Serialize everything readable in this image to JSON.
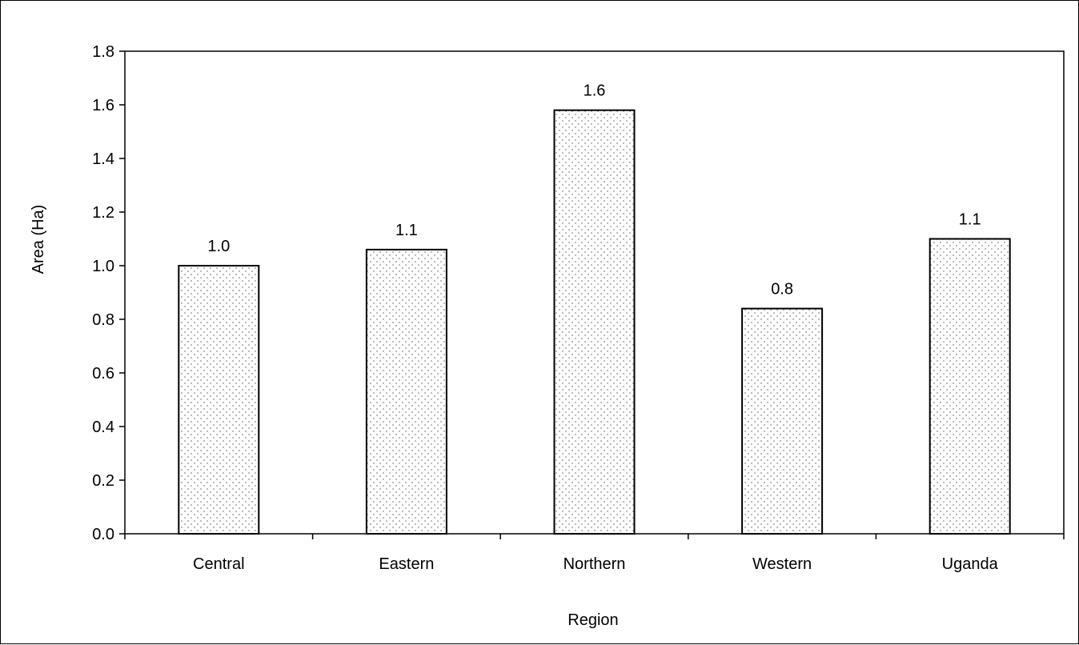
{
  "chart_data": {
    "type": "bar",
    "title": "",
    "xlabel": "Region",
    "ylabel": "Area (Ha)",
    "categories": [
      "Central",
      "Eastern",
      "Northern",
      "Western",
      "Uganda"
    ],
    "values": [
      1.0,
      1.06,
      1.58,
      0.84,
      1.1
    ],
    "data_labels": [
      "1.0",
      "1.1",
      "1.6",
      "0.8",
      "1.1"
    ],
    "ylim": [
      0,
      1.8
    ],
    "yticks": [
      "0.0",
      "0.2",
      "0.4",
      "0.6",
      "0.8",
      "1.0",
      "1.2",
      "1.4",
      "1.6",
      "1.8"
    ],
    "grid": false,
    "legend": "none",
    "bar_fill": "#ffffff",
    "bar_pattern_color": "#888888",
    "bar_outline": "#000000"
  }
}
